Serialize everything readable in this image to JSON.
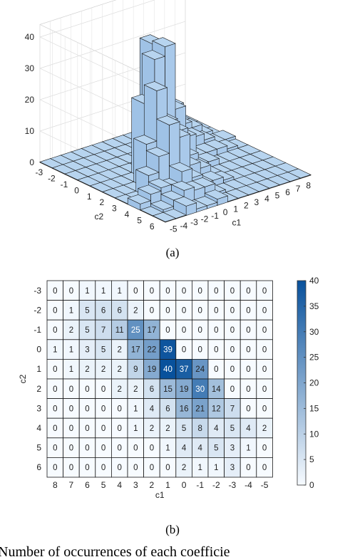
{
  "captions": {
    "a": "(a)",
    "b": "(b)"
  },
  "body_text": "Number of occurrences of each coefficie",
  "chart_data": [
    {
      "type": "bar3d",
      "panel": "(a)",
      "xlabel": "c1",
      "ylabel": "c2",
      "zlabel": "",
      "c1_ticks": [
        "8",
        "7",
        "6",
        "5",
        "4",
        "3",
        "2",
        "1",
        "0",
        "-1",
        "-2",
        "-3",
        "-4",
        "-5"
      ],
      "c2_ticks": [
        "-3",
        "-2",
        "-1",
        "0",
        "1",
        "2",
        "3",
        "4",
        "5",
        "6"
      ],
      "z_ticks": [
        "0",
        "10",
        "20",
        "30",
        "40"
      ],
      "zlim": [
        0,
        40
      ],
      "grid": true,
      "bar_color": "#b7d4ef",
      "note": "same counts as panel (b)"
    },
    {
      "type": "heatmap",
      "panel": "(b)",
      "xlabel": "c1",
      "ylabel": "c2",
      "x": [
        "8",
        "7",
        "6",
        "5",
        "4",
        "3",
        "2",
        "1",
        "0",
        "-1",
        "-2",
        "-3",
        "-4",
        "-5"
      ],
      "y": [
        "-3",
        "-2",
        "-1",
        "0",
        "1",
        "2",
        "3",
        "4",
        "5",
        "6"
      ],
      "values": [
        [
          0,
          0,
          1,
          1,
          1,
          0,
          0,
          0,
          0,
          0,
          0,
          0,
          0,
          0
        ],
        [
          0,
          1,
          5,
          6,
          6,
          2,
          0,
          0,
          0,
          0,
          0,
          0,
          0,
          0
        ],
        [
          0,
          2,
          5,
          7,
          11,
          25,
          17,
          0,
          0,
          0,
          0,
          0,
          0,
          0
        ],
        [
          1,
          1,
          3,
          5,
          2,
          17,
          22,
          39,
          0,
          0,
          0,
          0,
          0,
          0
        ],
        [
          0,
          1,
          2,
          2,
          2,
          9,
          19,
          40,
          37,
          24,
          0,
          0,
          0,
          0
        ],
        [
          0,
          0,
          0,
          0,
          2,
          2,
          6,
          15,
          19,
          30,
          14,
          0,
          0,
          0
        ],
        [
          0,
          0,
          0,
          0,
          0,
          1,
          4,
          6,
          16,
          21,
          12,
          7,
          0,
          0
        ],
        [
          0,
          0,
          0,
          0,
          0,
          1,
          2,
          2,
          5,
          8,
          4,
          5,
          4,
          2
        ],
        [
          0,
          0,
          0,
          0,
          0,
          0,
          0,
          1,
          4,
          4,
          5,
          3,
          1,
          0
        ],
        [
          0,
          0,
          0,
          0,
          0,
          0,
          0,
          0,
          2,
          1,
          1,
          3,
          0,
          0
        ]
      ],
      "colorbar": {
        "range": [
          0,
          40
        ],
        "ticks": [
          "0",
          "5",
          "10",
          "15",
          "20",
          "25",
          "30",
          "35",
          "40"
        ]
      },
      "colors": {
        "low": "#f7fbff",
        "high": "#08519c"
      }
    }
  ]
}
